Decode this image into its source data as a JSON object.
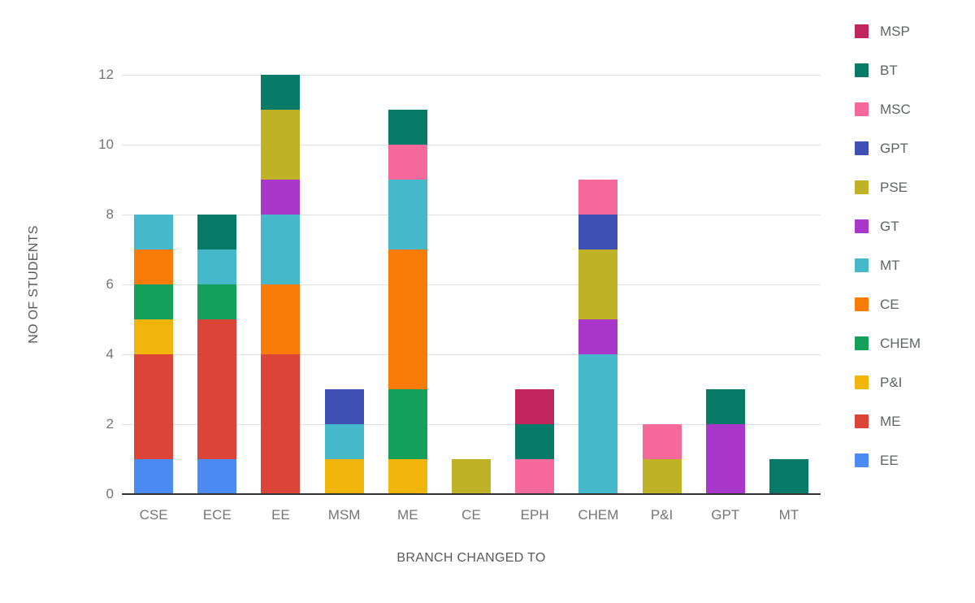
{
  "chart_data": {
    "type": "bar",
    "stacked": true,
    "title": "",
    "xlabel": "BRANCH CHANGED TO",
    "ylabel": "NO OF STUDENTS",
    "categories": [
      "CSE",
      "ECE",
      "EE",
      "MSM",
      "ME",
      "CE",
      "EPH",
      "CHEM",
      "P&I",
      "GPT",
      "MT"
    ],
    "y_ticks": [
      0,
      2,
      4,
      6,
      8,
      10,
      12
    ],
    "ylim": [
      0,
      12
    ],
    "grid": true,
    "legend_position": "right",
    "legend_order": [
      "MSP",
      "BT",
      "MSC",
      "GPT",
      "PSE",
      "GT",
      "MT",
      "CE",
      "CHEM",
      "P&I",
      "ME",
      "EE"
    ],
    "series": [
      {
        "name": "EE",
        "color": "#4C8BF4",
        "values": [
          1,
          1,
          0,
          0,
          0,
          0,
          0,
          0,
          0,
          0,
          0
        ]
      },
      {
        "name": "ME",
        "color": "#DC4437",
        "values": [
          3,
          4,
          4,
          0,
          0,
          0,
          0,
          0,
          0,
          0,
          0
        ]
      },
      {
        "name": "P&I",
        "color": "#F2B50C",
        "values": [
          1,
          0,
          0,
          1,
          1,
          0,
          0,
          0,
          0,
          0,
          0
        ]
      },
      {
        "name": "CHEM",
        "color": "#14A05A",
        "values": [
          1,
          1,
          0,
          0,
          2,
          0,
          0,
          0,
          0,
          0,
          0
        ]
      },
      {
        "name": "CE",
        "color": "#F97C09",
        "values": [
          1,
          0,
          2,
          0,
          4,
          0,
          0,
          0,
          0,
          0,
          0
        ]
      },
      {
        "name": "MT",
        "color": "#45B9C9",
        "values": [
          1,
          1,
          2,
          1,
          2,
          0,
          0,
          4,
          0,
          0,
          0
        ]
      },
      {
        "name": "GT",
        "color": "#A937C9",
        "values": [
          0,
          0,
          1,
          0,
          0,
          0,
          0,
          1,
          0,
          2,
          0
        ]
      },
      {
        "name": "PSE",
        "color": "#BFB226",
        "values": [
          0,
          0,
          2,
          0,
          0,
          1,
          0,
          2,
          1,
          0,
          0
        ]
      },
      {
        "name": "GPT",
        "color": "#3E50B4",
        "values": [
          0,
          0,
          0,
          1,
          0,
          0,
          0,
          1,
          0,
          0,
          0
        ]
      },
      {
        "name": "MSC",
        "color": "#F5699B",
        "values": [
          0,
          0,
          0,
          0,
          1,
          0,
          1,
          1,
          1,
          0,
          0
        ]
      },
      {
        "name": "BT",
        "color": "#077B67",
        "values": [
          0,
          1,
          1,
          0,
          1,
          0,
          1,
          0,
          0,
          1,
          1
        ]
      },
      {
        "name": "MSP",
        "color": "#C0255C",
        "values": [
          0,
          0,
          0,
          0,
          0,
          0,
          1,
          0,
          0,
          0,
          0
        ]
      }
    ]
  }
}
